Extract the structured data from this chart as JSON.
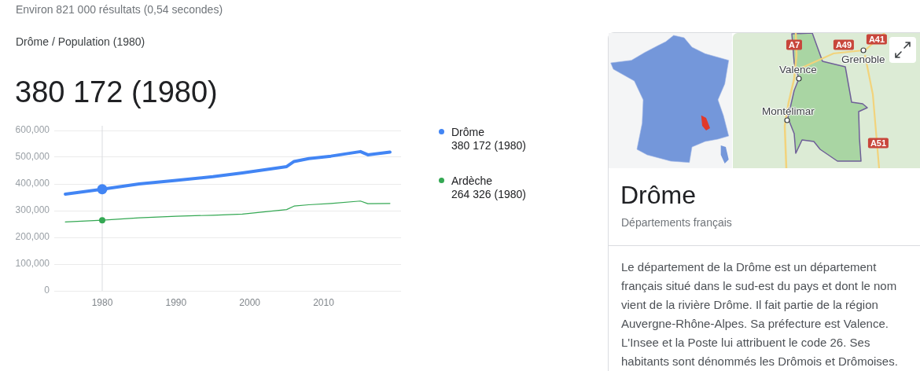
{
  "chart_data": {
    "type": "line",
    "title": "Drôme / Population (1980)",
    "subtitle": "380 172 (1980)",
    "x": [
      1975,
      1980,
      1985,
      1990,
      1995,
      1999,
      2005,
      2006,
      2008,
      2011,
      2015,
      2016,
      2019
    ],
    "series": [
      {
        "name": "Drôme",
        "color": "#4285f4",
        "values": [
          362000,
          380172,
          400000,
          413000,
          427000,
          441000,
          465000,
          484000,
          495000,
          504000,
          521000,
          509000,
          519000
        ]
      },
      {
        "name": "Ardèche",
        "color": "#34a853",
        "values": [
          258000,
          264326,
          273000,
          279000,
          283000,
          287000,
          304000,
          317000,
          322000,
          327000,
          336000,
          326000,
          327000
        ]
      },
      {
        "type": "scatter",
        "color": "#4285f4",
        "x": [
          1980
        ],
        "values": [
          380172
        ],
        "marker": "circle"
      },
      {
        "type": "scatter",
        "color": "#34a853",
        "x": [
          1980
        ],
        "values": [
          264326
        ],
        "marker": "circle"
      }
    ],
    "xlim": [
      1973.5,
      2020.5
    ],
    "xticks": [
      1980,
      1990,
      2000,
      2010
    ],
    "ylim": [
      0,
      600000
    ],
    "yticks": [
      0,
      {
        "value": 100000,
        "label": "100,000"
      },
      {
        "value": 200000,
        "label": "200,000"
      },
      {
        "value": 300000,
        "label": "300,000"
      },
      {
        "value": 400000,
        "label": "400,000"
      },
      {
        "value": 500000,
        "label": "500,000"
      },
      {
        "value": 600000,
        "label": "600,000"
      }
    ],
    "grid": "y",
    "legend": "right",
    "marker": "none",
    "line_style": "solid",
    "ref_lines": [
      {
        "axis": "x",
        "value": 1980,
        "color": "#dadce0"
      }
    ],
    "annotations": [
      "Environ 821 000 résultats (0,54 secondes)",
      "380 172 (1980)",
      "264 326 (1980)",
      "Drôme",
      "Départements français",
      "Le département de la Drôme est un département français situé dans le sud-est du pays et dont le nom vient de la rivière Drôme. Il fait partie de la région Auvergne-Rhône-Alpes. Sa préfecture est Valence. L'Insee et la Poste lui attribuent le code 26. Ses habitants sont dénommés les Drômois et Drômoises.",
      "A7",
      "A49",
      "A41",
      "Grenoble",
      "Valence",
      "Montélimar",
      "A51"
    ]
  }
}
